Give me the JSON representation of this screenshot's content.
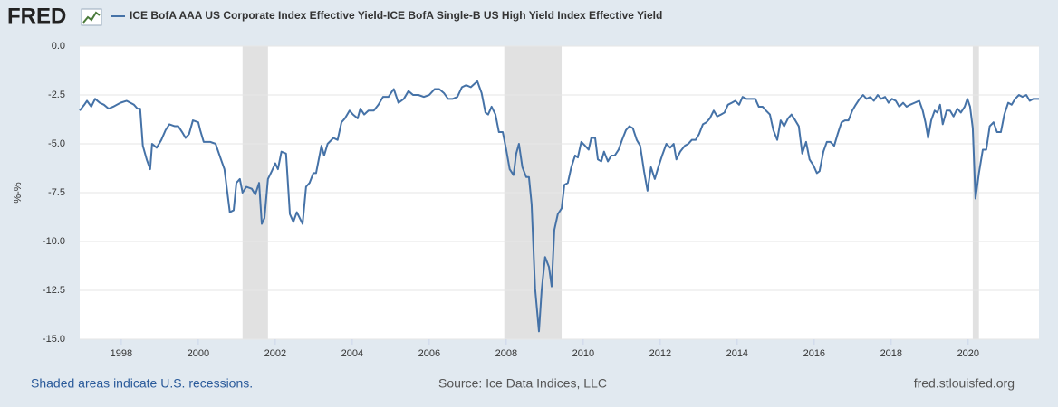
{
  "logo": "FRED",
  "chart_data": {
    "type": "line",
    "ylabel": "%-%",
    "note": "Shaded areas indicate U.S. recessions.",
    "source": "Source: Ice Data Indices, LLC",
    "site": "fred.stlouisfed.org",
    "xlim": [
      1996.92,
      2021.84
    ],
    "ylim": [
      -15,
      0
    ],
    "xticks": [
      1998,
      2000,
      2002,
      2004,
      2006,
      2008,
      2010,
      2012,
      2014,
      2016,
      2018,
      2020
    ],
    "yticks": [
      {
        "value": 0,
        "label": "0.0"
      },
      -2.5,
      {
        "value": -5,
        "label": "-5.0"
      },
      -7.5,
      {
        "value": -10,
        "label": "-10.0"
      },
      -12.5,
      {
        "value": -15,
        "label": "-15.0"
      }
    ],
    "grid": true,
    "recessions": [
      [
        2001.15,
        2001.81
      ],
      [
        2007.95,
        2009.44
      ],
      [
        2020.12,
        2020.28
      ]
    ],
    "recession_color": "#e1e1e1",
    "x": [
      1996.92,
      1997.04,
      1997.11,
      1997.22,
      1997.32,
      1997.44,
      1997.55,
      1997.67,
      1997.79,
      1997.98,
      1998.14,
      1998.33,
      1998.42,
      1998.49,
      1998.56,
      1998.66,
      1998.75,
      1998.8,
      1998.92,
      1999.04,
      1999.15,
      1999.25,
      1999.39,
      1999.48,
      1999.58,
      1999.67,
      1999.76,
      1999.86,
      2000.0,
      2000.05,
      2000.14,
      2000.31,
      2000.45,
      2000.59,
      2000.68,
      2000.82,
      2000.92,
      2000.99,
      2001.08,
      2001.15,
      2001.25,
      2001.39,
      2001.48,
      2001.58,
      2001.65,
      2001.72,
      2001.81,
      2001.91,
      2002.0,
      2002.07,
      2002.16,
      2002.28,
      2002.38,
      2002.47,
      2002.56,
      2002.71,
      2002.8,
      2002.89,
      2002.99,
      2003.06,
      2003.2,
      2003.27,
      2003.36,
      2003.51,
      2003.62,
      2003.72,
      2003.81,
      2003.93,
      2004.02,
      2004.14,
      2004.21,
      2004.31,
      2004.42,
      2004.56,
      2004.68,
      2004.8,
      2004.94,
      2005.04,
      2005.08,
      2005.2,
      2005.34,
      2005.46,
      2005.58,
      2005.72,
      2005.86,
      2006.0,
      2006.14,
      2006.26,
      2006.38,
      2006.49,
      2006.61,
      2006.73,
      2006.85,
      2006.96,
      2007.08,
      2007.25,
      2007.36,
      2007.46,
      2007.53,
      2007.62,
      2007.72,
      2007.81,
      2007.91,
      2008.0,
      2008.09,
      2008.19,
      2008.26,
      2008.33,
      2008.42,
      2008.52,
      2008.59,
      2008.66,
      2008.75,
      2008.85,
      2008.92,
      2009.01,
      2009.11,
      2009.18,
      2009.25,
      2009.34,
      2009.44,
      2009.51,
      2009.6,
      2009.69,
      2009.79,
      2009.86,
      2009.95,
      2010.05,
      2010.14,
      2010.21,
      2010.31,
      2010.38,
      2010.47,
      2010.54,
      2010.64,
      2010.73,
      2010.82,
      2010.92,
      2011.01,
      2011.11,
      2011.2,
      2011.29,
      2011.39,
      2011.48,
      2011.58,
      2011.67,
      2011.76,
      2011.86,
      2011.95,
      2012.05,
      2012.16,
      2012.26,
      2012.35,
      2012.42,
      2012.52,
      2012.64,
      2012.73,
      2012.82,
      2012.92,
      2013.01,
      2013.11,
      2013.2,
      2013.29,
      2013.39,
      2013.48,
      2013.58,
      2013.67,
      2013.76,
      2013.86,
      2013.95,
      2014.05,
      2014.14,
      2014.24,
      2014.35,
      2014.47,
      2014.56,
      2014.66,
      2014.75,
      2014.85,
      2014.94,
      2015.04,
      2015.13,
      2015.22,
      2015.32,
      2015.41,
      2015.51,
      2015.6,
      2015.69,
      2015.79,
      2015.88,
      2015.98,
      2016.07,
      2016.14,
      2016.24,
      2016.33,
      2016.42,
      2016.52,
      2016.61,
      2016.71,
      2016.8,
      2016.89,
      2016.99,
      2017.08,
      2017.18,
      2017.27,
      2017.36,
      2017.46,
      2017.55,
      2017.65,
      2017.74,
      2017.84,
      2017.93,
      2018.02,
      2018.12,
      2018.21,
      2018.31,
      2018.4,
      2018.49,
      2018.61,
      2018.73,
      2018.82,
      2018.89,
      2018.96,
      2019.04,
      2019.13,
      2019.2,
      2019.27,
      2019.34,
      2019.44,
      2019.53,
      2019.62,
      2019.72,
      2019.81,
      2019.91,
      2019.98,
      2020.05,
      2020.12,
      2020.19,
      2020.28,
      2020.38,
      2020.47,
      2020.56,
      2020.66,
      2020.75,
      2020.85,
      2020.94,
      2021.04,
      2021.13,
      2021.22,
      2021.32,
      2021.41,
      2021.51,
      2021.6,
      2021.69,
      2021.84
    ],
    "series": [
      {
        "name": "ICE BofA AAA US Corporate Index Effective Yield-ICE BofA Single-B US High Yield Index Effective Yield",
        "color": "#4572a7",
        "values": [
          -3.3,
          -3.0,
          -2.8,
          -3.1,
          -2.7,
          -2.9,
          -3.0,
          -3.2,
          -3.1,
          -2.9,
          -2.8,
          -3.0,
          -3.2,
          -3.2,
          -5.1,
          -5.8,
          -6.3,
          -5.0,
          -5.2,
          -4.8,
          -4.3,
          -4.0,
          -4.1,
          -4.1,
          -4.4,
          -4.7,
          -4.5,
          -3.8,
          -3.9,
          -4.3,
          -4.9,
          -4.9,
          -5.0,
          -5.8,
          -6.3,
          -8.5,
          -8.4,
          -7.0,
          -6.8,
          -7.5,
          -7.2,
          -7.3,
          -7.6,
          -7.0,
          -9.1,
          -8.8,
          -6.8,
          -6.4,
          -6.0,
          -6.3,
          -5.4,
          -5.5,
          -8.6,
          -9.0,
          -8.5,
          -9.1,
          -7.2,
          -7.0,
          -6.5,
          -6.5,
          -5.1,
          -5.6,
          -5.0,
          -4.7,
          -4.8,
          -3.9,
          -3.7,
          -3.3,
          -3.5,
          -3.7,
          -3.2,
          -3.5,
          -3.3,
          -3.3,
          -3.0,
          -2.6,
          -2.6,
          -2.3,
          -2.2,
          -2.9,
          -2.7,
          -2.3,
          -2.5,
          -2.5,
          -2.6,
          -2.5,
          -2.2,
          -2.2,
          -2.4,
          -2.7,
          -2.7,
          -2.6,
          -2.1,
          -2.0,
          -2.1,
          -1.8,
          -2.4,
          -3.4,
          -3.5,
          -3.1,
          -3.5,
          -4.4,
          -4.4,
          -5.3,
          -6.3,
          -6.6,
          -5.5,
          -5.0,
          -6.2,
          -6.7,
          -6.7,
          -8.1,
          -12.4,
          -14.6,
          -12.5,
          -10.8,
          -11.3,
          -12.3,
          -9.4,
          -8.6,
          -8.3,
          -7.1,
          -7.0,
          -6.2,
          -5.6,
          -5.7,
          -4.9,
          -5.1,
          -5.3,
          -4.7,
          -4.7,
          -5.8,
          -5.9,
          -5.4,
          -5.9,
          -5.6,
          -5.6,
          -5.3,
          -4.8,
          -4.3,
          -4.1,
          -4.2,
          -4.8,
          -5.1,
          -6.4,
          -7.4,
          -6.2,
          -6.8,
          -6.2,
          -5.6,
          -5.0,
          -5.2,
          -5.0,
          -5.8,
          -5.4,
          -5.1,
          -5.0,
          -4.8,
          -4.8,
          -4.5,
          -4.0,
          -3.9,
          -3.7,
          -3.3,
          -3.6,
          -3.5,
          -3.4,
          -3.0,
          -2.9,
          -2.8,
          -3.0,
          -2.6,
          -2.7,
          -2.7,
          -2.7,
          -3.1,
          -3.1,
          -3.3,
          -3.5,
          -4.3,
          -4.8,
          -3.8,
          -4.1,
          -3.7,
          -3.5,
          -3.8,
          -4.1,
          -5.5,
          -4.9,
          -5.8,
          -6.1,
          -6.5,
          -6.4,
          -5.4,
          -4.9,
          -4.9,
          -5.1,
          -4.5,
          -3.9,
          -3.8,
          -3.8,
          -3.3,
          -3.0,
          -2.7,
          -2.5,
          -2.7,
          -2.6,
          -2.8,
          -2.5,
          -2.7,
          -2.6,
          -2.9,
          -2.7,
          -2.8,
          -3.1,
          -2.9,
          -3.1,
          -3.0,
          -2.9,
          -2.8,
          -3.3,
          -3.9,
          -4.7,
          -3.8,
          -3.3,
          -3.4,
          -3.0,
          -4.0,
          -3.3,
          -3.3,
          -3.6,
          -3.2,
          -3.4,
          -3.1,
          -2.7,
          -3.1,
          -4.2,
          -7.8,
          -6.5,
          -5.3,
          -5.3,
          -4.1,
          -3.9,
          -4.4,
          -4.4,
          -3.5,
          -2.9,
          -3.0,
          -2.7,
          -2.5,
          -2.6,
          -2.5,
          -2.8,
          -2.7,
          -2.7
        ]
      }
    ]
  }
}
